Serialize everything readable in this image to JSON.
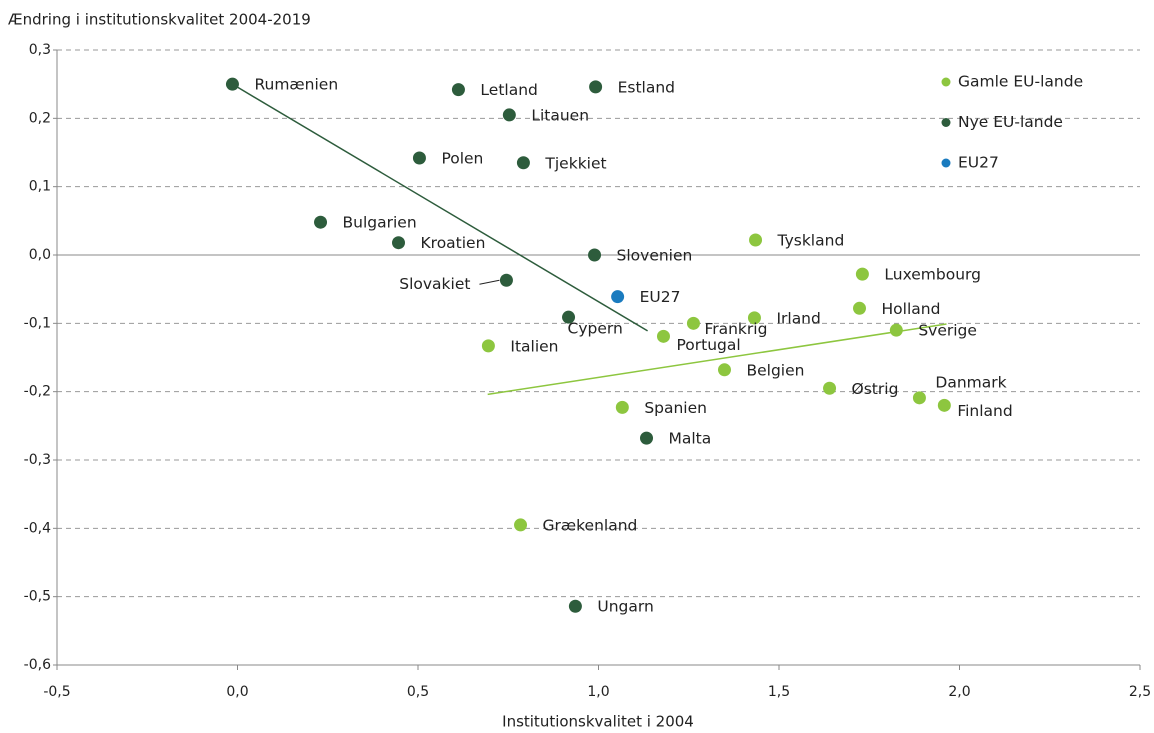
{
  "chart_data": {
    "type": "scatter",
    "title": "Ændring i institutionskvalitet 2004-2019",
    "x_label": "Institutionskvalitet i 2004",
    "xlim": [
      -0.5,
      2.5
    ],
    "ylim": [
      -0.6,
      0.3
    ],
    "xticks": [
      {
        "value": -0.5,
        "label": "-0,5"
      },
      {
        "value": 0,
        "label": "0,0"
      },
      {
        "value": 0.5,
        "label": "0,5"
      },
      {
        "value": 1,
        "label": "1,0"
      },
      {
        "value": 1.5,
        "label": "1,5"
      },
      {
        "value": 2,
        "label": "2,0"
      },
      {
        "value": 2.5,
        "label": "2,5"
      }
    ],
    "yticks": [
      {
        "value": 0.3,
        "label": "0,3"
      },
      {
        "value": 0.2,
        "label": "0,2"
      },
      {
        "value": 0.1,
        "label": "0,1"
      },
      {
        "value": 0,
        "label": "0,0"
      },
      {
        "value": -0.1,
        "label": "-0,1"
      },
      {
        "value": -0.2,
        "label": "-0,2"
      },
      {
        "value": -0.3,
        "label": "-0,3"
      },
      {
        "value": -0.4,
        "label": "-0,4"
      },
      {
        "value": -0.5,
        "label": "-0,5"
      },
      {
        "value": -0.6,
        "label": "-0,6"
      }
    ],
    "grid": true,
    "legend": "upper right",
    "series": [
      {
        "name": "Gamle EU-lande",
        "color": "#8dc63f",
        "labels": [
          "Tyskland",
          "Luxembourg",
          "Holland",
          "Sverige",
          "Irland",
          "Frankrig",
          "Portugal",
          "Italien",
          "Belgien",
          "Østrig",
          "Danmark",
          "Finland",
          "Spanien",
          "Grækenland"
        ],
        "x": [
          1.435,
          1.731,
          1.723,
          1.825,
          1.432,
          1.263,
          1.18,
          0.695,
          1.349,
          1.64,
          1.889,
          1.958,
          1.066,
          0.784
        ],
        "values": [
          0.022,
          -0.028,
          -0.078,
          -0.11,
          -0.092,
          -0.1,
          -0.119,
          -0.133,
          -0.168,
          -0.195,
          -0.209,
          -0.22,
          -0.223,
          -0.395
        ],
        "trendline": {
          "x": [
            0.693,
            1.964
          ],
          "values": [
            -0.204,
            -0.101
          ]
        }
      },
      {
        "name": "Nye EU-lande",
        "color": "#2d5c3c",
        "labels": [
          "Rumænien",
          "Letland",
          "Estland",
          "Litauen",
          "Polen",
          "Tjekkiet",
          "Bulgarien",
          "Kroatien",
          "Slovenien",
          "Slovakiet",
          "Cypern",
          "Malta",
          "Ungarn"
        ],
        "x": [
          -0.014,
          0.612,
          0.992,
          0.753,
          0.504,
          0.792,
          0.23,
          0.446,
          0.989,
          0.745,
          0.917,
          1.133,
          0.936
        ],
        "values": [
          0.25,
          0.242,
          0.246,
          0.205,
          0.142,
          0.135,
          0.048,
          0.018,
          0.0,
          -0.037,
          -0.091,
          -0.268,
          -0.514
        ],
        "trendline": {
          "x": [
            -0.014,
            1.136
          ],
          "values": [
            0.25,
            -0.111
          ]
        }
      },
      {
        "name": "EU27",
        "color": "#1a7bbf",
        "labels": [
          "EU27"
        ],
        "x": [
          1.053
        ],
        "values": [
          -0.061
        ]
      }
    ]
  }
}
